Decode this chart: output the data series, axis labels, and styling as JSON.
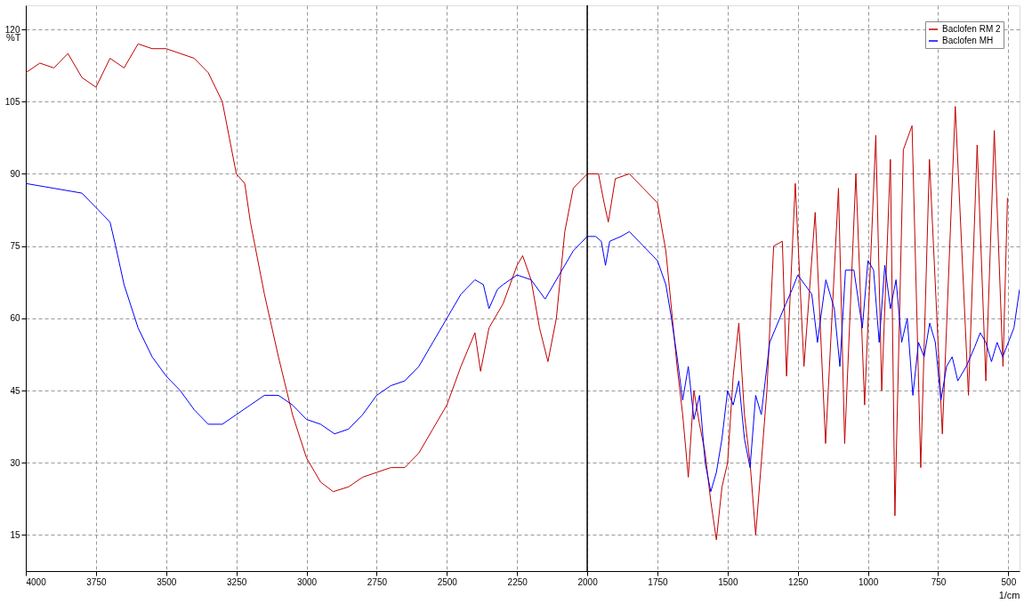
{
  "chart_data": {
    "type": "line",
    "xlabel": "1/cm",
    "ylabel": "%T",
    "xlim": [
      4000,
      460
    ],
    "xticks": [
      4000,
      3750,
      3500,
      3250,
      3000,
      2750,
      2500,
      2250,
      2000,
      1750,
      1500,
      1250,
      1000,
      750,
      500
    ],
    "ylim": [
      7.5,
      125
    ],
    "yticks": [
      15,
      30,
      45,
      60,
      75,
      90,
      105,
      120
    ],
    "grid": true,
    "line_style": "solid",
    "legend": "top right",
    "ref_lines": [
      {
        "axis": "x",
        "value": 2000,
        "color": "#000000"
      }
    ],
    "series": [
      {
        "name": "Baclofen RM 2",
        "color": "#c00000",
        "x": [
          4000,
          3950,
          3900,
          3850,
          3800,
          3750,
          3700,
          3650,
          3600,
          3550,
          3500,
          3450,
          3400,
          3350,
          3300,
          3270,
          3250,
          3220,
          3200,
          3150,
          3100,
          3050,
          3000,
          2950,
          2905,
          2850,
          2800,
          2750,
          2700,
          2650,
          2600,
          2550,
          2500,
          2450,
          2400,
          2380,
          2350,
          2300,
          2250,
          2230,
          2200,
          2170,
          2140,
          2110,
          2080,
          2050,
          2000,
          1960,
          1940,
          1925,
          1900,
          1850,
          1800,
          1750,
          1720,
          1700,
          1680,
          1660,
          1640,
          1620,
          1600,
          1580,
          1560,
          1540,
          1520,
          1500,
          1480,
          1460,
          1440,
          1420,
          1400,
          1380,
          1360,
          1336,
          1305,
          1290,
          1259,
          1228,
          1188,
          1151,
          1105,
          1083,
          1043,
          1012,
          972,
          951,
          920,
          904,
          874,
          843,
          812,
          781,
          735,
          689,
          642,
          611,
          580,
          550,
          519,
          503
        ],
        "values": [
          111,
          113,
          112,
          115,
          110,
          108,
          114,
          112,
          117,
          116,
          116,
          115,
          114,
          111,
          105,
          96,
          90,
          88,
          80,
          65,
          52,
          40,
          31,
          26,
          24,
          25,
          27,
          28,
          29,
          29,
          32,
          37,
          42,
          50,
          57,
          49,
          58,
          63,
          71,
          73,
          68,
          58,
          51,
          60,
          78,
          87,
          90,
          90,
          84,
          80,
          89,
          90,
          87,
          84,
          74,
          62,
          50,
          40,
          27,
          45,
          38,
          32,
          22,
          14,
          25,
          30,
          48,
          59,
          40,
          30,
          15,
          30,
          45,
          75,
          76,
          48,
          88,
          50,
          82,
          34,
          87,
          34,
          90,
          42,
          98,
          45,
          93,
          19,
          95,
          100,
          29,
          93,
          36,
          104,
          44,
          96,
          47,
          99,
          50,
          85
        ]
      },
      {
        "name": "Baclofen MH",
        "color": "#0000ff",
        "x": [
          4000,
          3900,
          3800,
          3750,
          3700,
          3680,
          3650,
          3600,
          3550,
          3500,
          3450,
          3400,
          3350,
          3300,
          3250,
          3200,
          3150,
          3100,
          3050,
          3000,
          2950,
          2900,
          2850,
          2800,
          2750,
          2700,
          2650,
          2600,
          2550,
          2500,
          2450,
          2400,
          2370,
          2350,
          2320,
          2300,
          2250,
          2200,
          2150,
          2100,
          2050,
          2000,
          1970,
          1950,
          1935,
          1920,
          1880,
          1850,
          1800,
          1750,
          1720,
          1700,
          1680,
          1660,
          1640,
          1620,
          1600,
          1580,
          1560,
          1540,
          1520,
          1500,
          1480,
          1460,
          1440,
          1420,
          1400,
          1380,
          1350,
          1300,
          1270,
          1250,
          1200,
          1180,
          1150,
          1120,
          1100,
          1080,
          1050,
          1020,
          1000,
          980,
          960,
          940,
          920,
          900,
          880,
          860,
          840,
          820,
          800,
          780,
          760,
          740,
          720,
          700,
          680,
          650,
          620,
          600,
          580,
          560,
          540,
          520,
          500,
          480,
          460
        ],
        "values": [
          88,
          87,
          86,
          83,
          80,
          75,
          67,
          58,
          52,
          48,
          45,
          41,
          38,
          38,
          40,
          42,
          44,
          44,
          42,
          39,
          38,
          36,
          37,
          40,
          44,
          46,
          47,
          50,
          55,
          60,
          65,
          68,
          67,
          62,
          66,
          67,
          69,
          68,
          64,
          69,
          74,
          77,
          77,
          76,
          71,
          76,
          77,
          78,
          75,
          72,
          67,
          60,
          52,
          43,
          50,
          39,
          44,
          30,
          24,
          28,
          35,
          45,
          42,
          47,
          35,
          29,
          44,
          40,
          55,
          62,
          66,
          69,
          65,
          55,
          68,
          62,
          50,
          70,
          70,
          58,
          72,
          70,
          55,
          71,
          62,
          68,
          55,
          60,
          44,
          55,
          52,
          59,
          55,
          43,
          50,
          52,
          47,
          50,
          54,
          57,
          55,
          51,
          55,
          52,
          55,
          58,
          66
        ]
      }
    ]
  }
}
